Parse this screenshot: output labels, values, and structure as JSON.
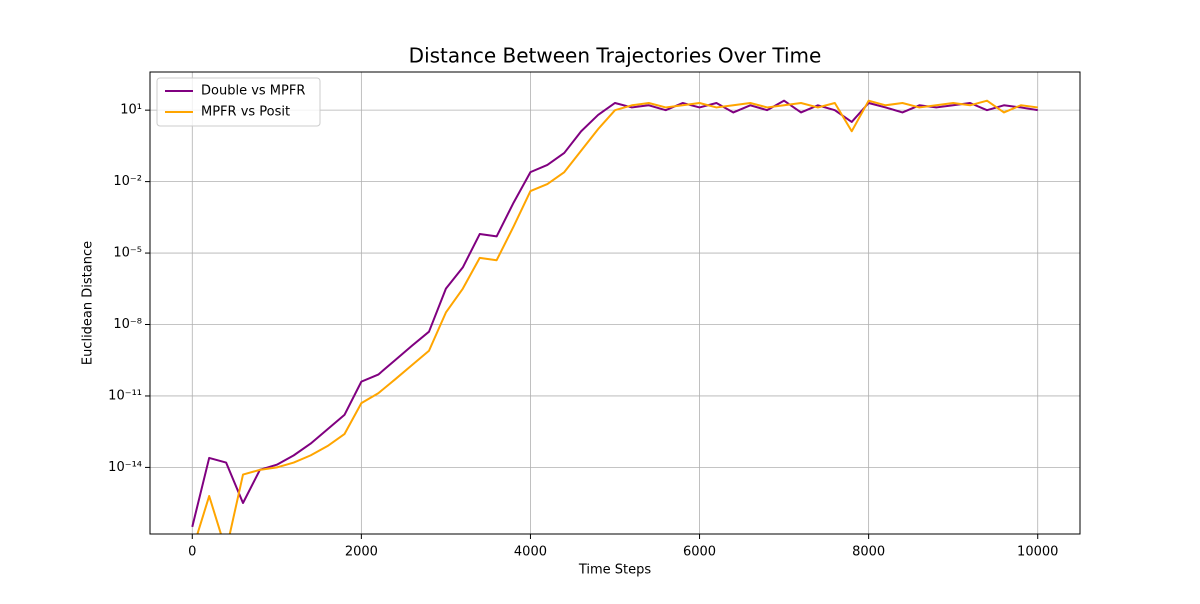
{
  "chart_data": {
    "type": "line",
    "title": "Distance Between Trajectories Over Time",
    "xlabel": "Time Steps",
    "ylabel": "Euclidean Distance",
    "x": [
      0,
      200,
      400,
      600,
      800,
      1000,
      1200,
      1400,
      1600,
      1800,
      2000,
      2200,
      2400,
      2600,
      2800,
      3000,
      3200,
      3400,
      3600,
      3800,
      4000,
      4200,
      4400,
      4600,
      4800,
      5000,
      5200,
      5400,
      5600,
      5800,
      6000,
      6200,
      6400,
      6600,
      6800,
      7000,
      7200,
      7400,
      7600,
      7800,
      8000,
      8200,
      8400,
      8600,
      8800,
      9000,
      9200,
      9400,
      9600,
      9800,
      10000
    ],
    "series": [
      {
        "name": "Double vs MPFR",
        "color": "#800080",
        "values": [
          3.2e-17,
          2.5e-14,
          1.6e-14,
          3.2e-16,
          7.9e-15,
          1.3e-14,
          3.2e-14,
          1e-13,
          4e-13,
          1.6e-12,
          4e-11,
          7.9e-11,
          3.2e-10,
          1.3e-09,
          5e-09,
          3.2e-07,
          2.5e-06,
          6.3e-05,
          5e-05,
          0.0013,
          0.025,
          0.05,
          0.16,
          1.3,
          6.3,
          20,
          13,
          16,
          10,
          20,
          13,
          20,
          8,
          16,
          10,
          25,
          8,
          16,
          10,
          3.2,
          20,
          13,
          8,
          16,
          13,
          16,
          20,
          10,
          16,
          13,
          10
        ]
      },
      {
        "name": "MPFR vs Posit",
        "color": "#ffa500",
        "values": [
          3.2e-18,
          6.3e-16,
          3.2e-18,
          5e-15,
          7.9e-15,
          1e-14,
          1.6e-14,
          3.2e-14,
          7.9e-14,
          2.5e-13,
          5e-12,
          1.3e-11,
          5e-11,
          2e-10,
          7.9e-10,
          3.2e-08,
          3.2e-07,
          6.3e-06,
          5e-06,
          0.00013,
          0.004,
          0.0079,
          0.025,
          0.2,
          1.6,
          10,
          16,
          20,
          13,
          16,
          20,
          13,
          16,
          20,
          13,
          16,
          20,
          13,
          20,
          1.3,
          25,
          16,
          20,
          13,
          16,
          20,
          16,
          25,
          8,
          16,
          13
        ]
      }
    ],
    "xlim": [
      -500,
      10500
    ],
    "xticks": [
      0,
      2000,
      4000,
      6000,
      8000,
      10000
    ],
    "ylim": [
      1.6e-17,
      400
    ],
    "log_y": true,
    "yticks": [
      {
        "value": 1e-14,
        "label": "10⁻¹⁴"
      },
      {
        "value": 1e-11,
        "label": "10⁻¹¹"
      },
      {
        "value": 1e-08,
        "label": "10⁻⁸"
      },
      {
        "value": 1e-05,
        "label": "10⁻⁵"
      },
      {
        "value": 0.01,
        "label": "10⁻²"
      },
      {
        "value": 10,
        "label": "10¹"
      }
    ],
    "grid": true,
    "legend": "upper left"
  }
}
